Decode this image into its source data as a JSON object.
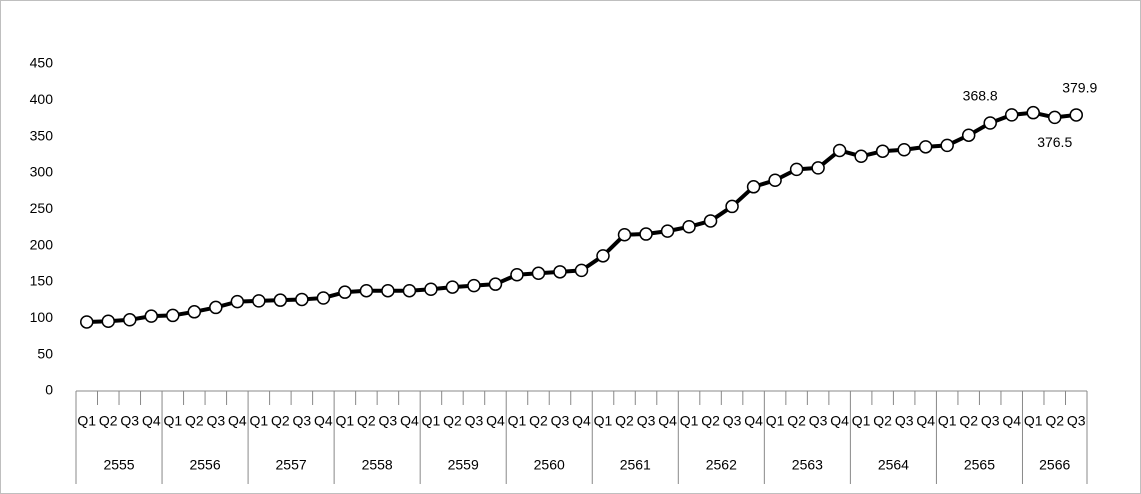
{
  "chart_data": {
    "type": "line",
    "groups": [
      {
        "label": "2555",
        "categories": [
          "Q1",
          "Q2",
          "Q3",
          "Q4"
        ]
      },
      {
        "label": "2556",
        "categories": [
          "Q1",
          "Q2",
          "Q3",
          "Q4"
        ]
      },
      {
        "label": "2557",
        "categories": [
          "Q1",
          "Q2",
          "Q3",
          "Q4"
        ]
      },
      {
        "label": "2558",
        "categories": [
          "Q1",
          "Q2",
          "Q3",
          "Q4"
        ]
      },
      {
        "label": "2559",
        "categories": [
          "Q1",
          "Q2",
          "Q3",
          "Q4"
        ]
      },
      {
        "label": "2560",
        "categories": [
          "Q1",
          "Q2",
          "Q3",
          "Q4"
        ]
      },
      {
        "label": "2561",
        "categories": [
          "Q1",
          "Q2",
          "Q3",
          "Q4"
        ]
      },
      {
        "label": "2562",
        "categories": [
          "Q1",
          "Q2",
          "Q3",
          "Q4"
        ]
      },
      {
        "label": "2563",
        "categories": [
          "Q1",
          "Q2",
          "Q3",
          "Q4"
        ]
      },
      {
        "label": "2564",
        "categories": [
          "Q1",
          "Q2",
          "Q3",
          "Q4"
        ]
      },
      {
        "label": "2565",
        "categories": [
          "Q1",
          "Q2",
          "Q3",
          "Q4"
        ]
      },
      {
        "label": "2566",
        "categories": [
          "Q1",
          "Q2",
          "Q3"
        ]
      }
    ],
    "values": [
      95,
      96,
      98,
      103,
      104,
      109,
      115,
      123,
      124,
      125,
      126,
      128,
      136,
      138,
      138,
      138,
      140,
      143,
      145,
      147,
      160,
      162,
      164,
      166,
      186,
      215,
      216,
      220,
      226,
      234,
      254,
      281,
      290,
      305,
      307,
      331,
      323,
      330,
      332,
      336,
      338,
      352,
      368.8,
      380,
      383,
      376.5,
      379.9
    ],
    "value_labels": [
      null,
      null,
      null,
      null,
      null,
      null,
      null,
      null,
      null,
      null,
      null,
      null,
      null,
      null,
      null,
      null,
      null,
      null,
      null,
      null,
      null,
      null,
      null,
      null,
      null,
      null,
      null,
      null,
      null,
      null,
      null,
      null,
      null,
      null,
      null,
      null,
      null,
      null,
      null,
      null,
      null,
      null,
      "368.8",
      null,
      null,
      "376.5",
      "379.9"
    ],
    "color": "#000000",
    "ylim": [
      0,
      450
    ],
    "yticks": [
      0,
      50,
      100,
      150,
      200,
      250,
      300,
      350,
      400,
      450
    ],
    "grid": false
  }
}
